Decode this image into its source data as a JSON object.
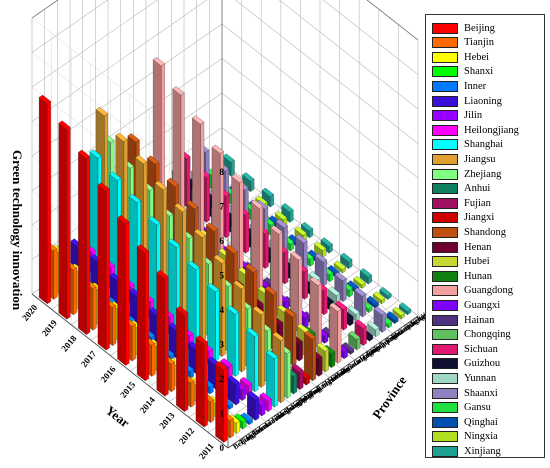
{
  "chart_data": {
    "type": "bar",
    "subtype": "3d-bar",
    "xlabel": "Year",
    "ylabel": "Province",
    "zlabel": "Green technology innovation",
    "zlim": [
      0,
      8
    ],
    "z_ticks": [
      "0",
      "1",
      "2",
      "3",
      "4",
      "5",
      "6",
      "7",
      "8"
    ],
    "grid": true,
    "legend_position": "right",
    "years": [
      "2011",
      "2012",
      "2013",
      "2014",
      "2015",
      "2016",
      "2017",
      "2018",
      "2019",
      "2020"
    ],
    "series": [
      {
        "name": "Beijing",
        "color": "#ff0000",
        "values": [
          2.1,
          2.4,
          2.8,
          3.4,
          3.7,
          4.1,
          4.6,
          5.1,
          5.5,
          5.8
        ]
      },
      {
        "name": "Tianjin",
        "color": "#ff6a00",
        "values": [
          0.5,
          0.6,
          0.7,
          0.8,
          0.9,
          1.0,
          1.1,
          1.2,
          1.3,
          1.4
        ]
      },
      {
        "name": "Hebei",
        "color": "#ffff00",
        "values": [
          0.3,
          0.4,
          0.5,
          0.6,
          0.7,
          0.8,
          0.9,
          1.0,
          1.1,
          1.2
        ]
      },
      {
        "name": "Shanxi",
        "color": "#00ff00",
        "values": [
          0.2,
          0.2,
          0.3,
          0.3,
          0.4,
          0.4,
          0.5,
          0.5,
          0.6,
          0.7
        ]
      },
      {
        "name": "Inner",
        "color": "#0078ff",
        "values": [
          0.1,
          0.1,
          0.2,
          0.2,
          0.2,
          0.3,
          0.3,
          0.4,
          0.4,
          0.5
        ]
      },
      {
        "name": "Liaoning",
        "color": "#3a0fd8",
        "values": [
          0.6,
          0.6,
          0.7,
          0.7,
          0.8,
          0.8,
          0.9,
          0.9,
          1.0,
          1.0
        ]
      },
      {
        "name": "Jilin",
        "color": "#9900ff",
        "values": [
          0.3,
          0.3,
          0.3,
          0.4,
          0.4,
          0.4,
          0.5,
          0.5,
          0.5,
          0.6
        ]
      },
      {
        "name": "Heilongjiang",
        "color": "#ff00ff",
        "values": [
          0.3,
          0.3,
          0.4,
          0.4,
          0.4,
          0.5,
          0.5,
          0.5,
          0.6,
          0.6
        ]
      },
      {
        "name": "Shanghai",
        "color": "#00ffff",
        "values": [
          1.4,
          1.6,
          1.8,
          2.0,
          2.2,
          2.4,
          2.6,
          2.8,
          3.0,
          3.2
        ]
      },
      {
        "name": "Jiangsu",
        "color": "#e0a030",
        "values": [
          1.8,
          2.1,
          2.4,
          2.7,
          3.0,
          3.3,
          3.5,
          3.8,
          4.0,
          4.3
        ]
      },
      {
        "name": "Zhejiang",
        "color": "#80ff80",
        "values": [
          1.3,
          1.5,
          1.7,
          1.9,
          2.1,
          2.4,
          2.6,
          2.9,
          3.1,
          3.4
        ]
      },
      {
        "name": "Anhui",
        "color": "#108060",
        "values": [
          0.5,
          0.6,
          0.7,
          0.8,
          0.9,
          1.0,
          1.2,
          1.3,
          1.4,
          1.6
        ]
      },
      {
        "name": "Fujian",
        "color": "#a01060",
        "values": [
          0.5,
          0.5,
          0.6,
          0.7,
          0.8,
          0.9,
          1.0,
          1.1,
          1.2,
          1.3
        ]
      },
      {
        "name": "Jiangxi",
        "color": "#d00000",
        "values": [
          0.2,
          0.3,
          0.3,
          0.4,
          0.5,
          0.5,
          0.6,
          0.7,
          0.8,
          0.9
        ]
      },
      {
        "name": "Shandong",
        "color": "#c05010",
        "values": [
          1.2,
          1.4,
          1.6,
          1.8,
          1.9,
          2.1,
          2.3,
          2.5,
          2.7,
          2.9
        ]
      },
      {
        "name": "Henan",
        "color": "#700030",
        "values": [
          0.5,
          0.5,
          0.6,
          0.7,
          0.8,
          0.9,
          1.0,
          1.1,
          1.2,
          1.3
        ]
      },
      {
        "name": "Hubei",
        "color": "#c8d830",
        "values": [
          0.6,
          0.7,
          0.8,
          0.9,
          1.0,
          1.1,
          1.2,
          1.3,
          1.4,
          1.5
        ]
      },
      {
        "name": "Hunan",
        "color": "#108010",
        "values": [
          0.4,
          0.5,
          0.6,
          0.6,
          0.7,
          0.8,
          0.9,
          1.0,
          1.1,
          1.2
        ]
      },
      {
        "name": "Guangdong",
        "color": "#f4a0a0",
        "values": [
          1.5,
          1.8,
          2.1,
          2.4,
          2.7,
          3.0,
          3.4,
          3.8,
          4.2,
          4.6
        ]
      },
      {
        "name": "Guangxi",
        "color": "#8000ff",
        "values": [
          0.2,
          0.2,
          0.3,
          0.3,
          0.3,
          0.4,
          0.4,
          0.5,
          0.5,
          0.6
        ]
      },
      {
        "name": "Hainan",
        "color": "#503080",
        "values": [
          0.1,
          0.1,
          0.1,
          0.1,
          0.2,
          0.2,
          0.2,
          0.2,
          0.3,
          0.3
        ]
      },
      {
        "name": "Chongqing",
        "color": "#60c060",
        "values": [
          0.3,
          0.4,
          0.4,
          0.5,
          0.6,
          0.6,
          0.7,
          0.8,
          0.9,
          1.0
        ]
      },
      {
        "name": "Sichuan",
        "color": "#e01870",
        "values": [
          0.5,
          0.6,
          0.7,
          0.8,
          0.9,
          1.0,
          1.1,
          1.2,
          1.3,
          1.4
        ]
      },
      {
        "name": "Guizhou",
        "color": "#101030",
        "values": [
          0.1,
          0.2,
          0.2,
          0.2,
          0.3,
          0.3,
          0.4,
          0.4,
          0.5,
          0.5
        ]
      },
      {
        "name": "Yunnan",
        "color": "#a0d8c8",
        "values": [
          0.2,
          0.2,
          0.3,
          0.3,
          0.3,
          0.4,
          0.4,
          0.5,
          0.5,
          0.6
        ]
      },
      {
        "name": "Shaanxi",
        "color": "#9080c0",
        "values": [
          0.5,
          0.6,
          0.6,
          0.7,
          0.8,
          0.8,
          0.9,
          1.0,
          1.1,
          1.2
        ]
      },
      {
        "name": "Gansu",
        "color": "#20e040",
        "values": [
          0.1,
          0.1,
          0.2,
          0.2,
          0.2,
          0.2,
          0.3,
          0.3,
          0.3,
          0.4
        ]
      },
      {
        "name": "Qinghai",
        "color": "#0050b0",
        "values": [
          0.1,
          0.1,
          0.1,
          0.1,
          0.1,
          0.1,
          0.2,
          0.2,
          0.2,
          0.2
        ]
      },
      {
        "name": "Ningxia",
        "color": "#b0e020",
        "values": [
          0.1,
          0.1,
          0.1,
          0.1,
          0.2,
          0.2,
          0.2,
          0.2,
          0.2,
          0.3
        ]
      },
      {
        "name": "Xinjiang",
        "color": "#20a090",
        "values": [
          0.1,
          0.1,
          0.2,
          0.2,
          0.2,
          0.2,
          0.3,
          0.3,
          0.3,
          0.4
        ]
      }
    ]
  }
}
